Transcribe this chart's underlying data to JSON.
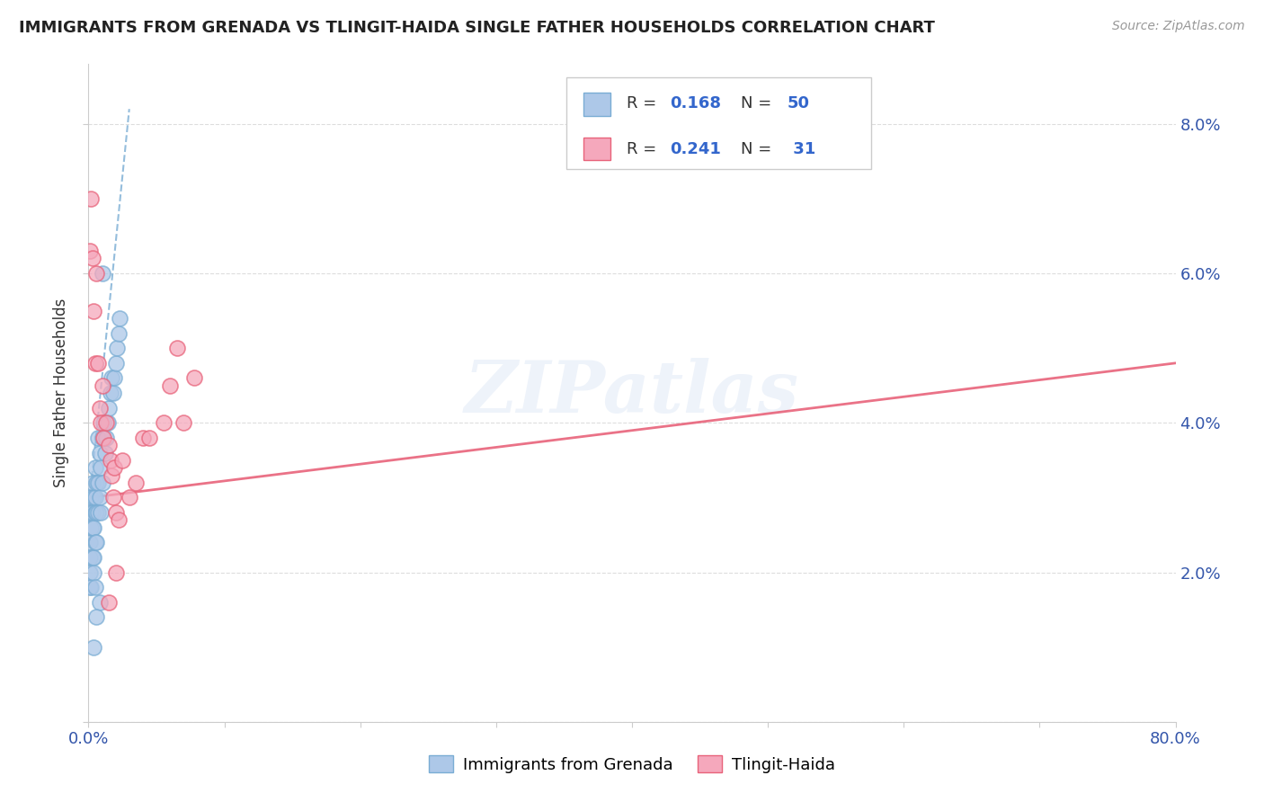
{
  "title": "IMMIGRANTS FROM GRENADA VS TLINGIT-HAIDA SINGLE FATHER HOUSEHOLDS CORRELATION CHART",
  "source": "Source: ZipAtlas.com",
  "ylabel": "Single Father Households",
  "legend_label1": "Immigrants from Grenada",
  "legend_label2": "Tlingit-Haida",
  "r1": 0.168,
  "n1": 50,
  "r2": 0.241,
  "n2": 31,
  "color1": "#adc8e8",
  "color2": "#f5a8bc",
  "line_color1": "#7aadd4",
  "line_color2": "#e8637a",
  "watermark": "ZIPatlas",
  "xlim": [
    0.0,
    0.8
  ],
  "ylim": [
    0.0,
    0.088
  ],
  "blue_points_x": [
    0.001,
    0.001,
    0.001,
    0.001,
    0.002,
    0.002,
    0.002,
    0.002,
    0.003,
    0.003,
    0.003,
    0.003,
    0.004,
    0.004,
    0.004,
    0.004,
    0.005,
    0.005,
    0.005,
    0.005,
    0.005,
    0.006,
    0.006,
    0.006,
    0.007,
    0.007,
    0.007,
    0.008,
    0.008,
    0.009,
    0.009,
    0.01,
    0.01,
    0.011,
    0.012,
    0.013,
    0.014,
    0.015,
    0.016,
    0.017,
    0.018,
    0.019,
    0.02,
    0.021,
    0.022,
    0.023,
    0.01,
    0.008,
    0.006,
    0.004
  ],
  "blue_points_y": [
    0.024,
    0.022,
    0.02,
    0.018,
    0.03,
    0.028,
    0.026,
    0.018,
    0.032,
    0.028,
    0.026,
    0.022,
    0.03,
    0.026,
    0.022,
    0.02,
    0.034,
    0.03,
    0.028,
    0.024,
    0.018,
    0.032,
    0.028,
    0.024,
    0.038,
    0.032,
    0.028,
    0.036,
    0.03,
    0.034,
    0.028,
    0.038,
    0.032,
    0.04,
    0.036,
    0.038,
    0.04,
    0.042,
    0.044,
    0.046,
    0.044,
    0.046,
    0.048,
    0.05,
    0.052,
    0.054,
    0.06,
    0.016,
    0.014,
    0.01
  ],
  "pink_points_x": [
    0.001,
    0.002,
    0.003,
    0.004,
    0.005,
    0.006,
    0.007,
    0.008,
    0.009,
    0.01,
    0.011,
    0.013,
    0.015,
    0.016,
    0.017,
    0.018,
    0.019,
    0.02,
    0.022,
    0.025,
    0.03,
    0.035,
    0.04,
    0.045,
    0.055,
    0.06,
    0.065,
    0.07,
    0.078,
    0.015,
    0.02
  ],
  "pink_points_y": [
    0.063,
    0.07,
    0.062,
    0.055,
    0.048,
    0.06,
    0.048,
    0.042,
    0.04,
    0.045,
    0.038,
    0.04,
    0.037,
    0.035,
    0.033,
    0.03,
    0.034,
    0.028,
    0.027,
    0.035,
    0.03,
    0.032,
    0.038,
    0.038,
    0.04,
    0.045,
    0.05,
    0.04,
    0.046,
    0.016,
    0.02
  ],
  "blue_line_x": [
    0.001,
    0.03
  ],
  "blue_line_y": [
    0.03,
    0.082
  ],
  "pink_line_x": [
    0.001,
    0.8
  ],
  "pink_line_y": [
    0.03,
    0.048
  ]
}
